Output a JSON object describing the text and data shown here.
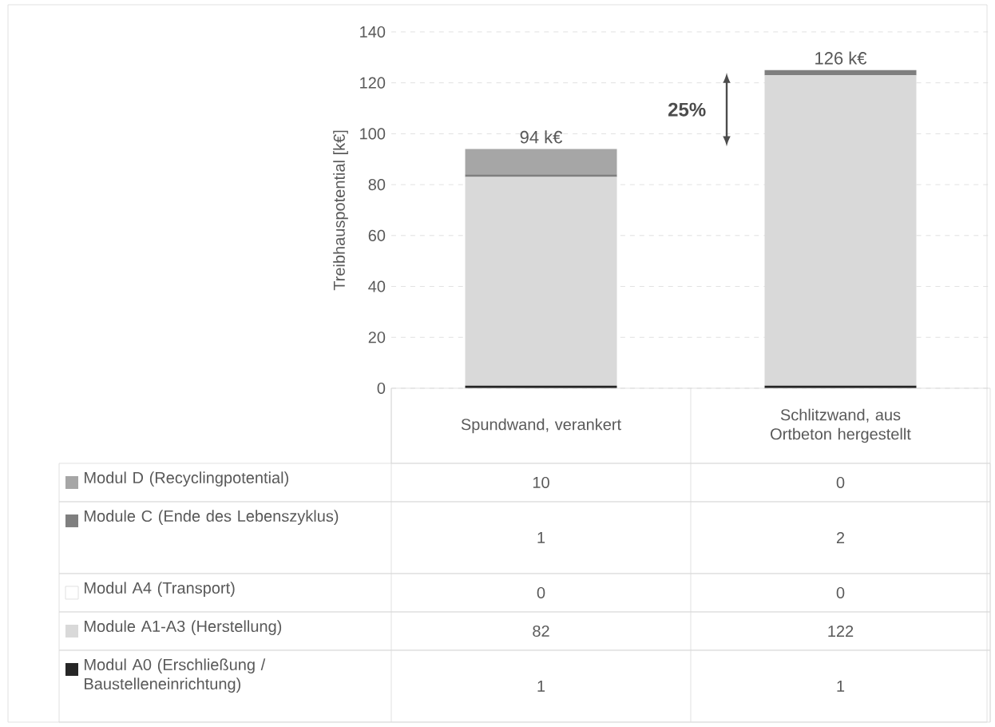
{
  "chart_data": {
    "type": "bar",
    "stacked": true,
    "ylabel": "Treibhauspotential [k€]",
    "categories": [
      "Spundwand, verankert",
      "Schlitzwand, aus Ortbeton hergestellt"
    ],
    "series": [
      {
        "name": "Modul A0 (Erschließung / Baustelleneinrichtung)",
        "color": "#262626",
        "values": [
          1,
          1
        ]
      },
      {
        "name": "Module A1-A3 (Herstellung)",
        "color": "#d9d9d9",
        "values": [
          82,
          122
        ]
      },
      {
        "name": "Modul A4 (Transport)",
        "color": "#ffffff",
        "values": [
          0,
          0
        ]
      },
      {
        "name": "Module C (Ende des Lebenszyklus)",
        "color": "#7f7f7f",
        "values": [
          1,
          2
        ]
      },
      {
        "name": "Modul D (Recyclingpotential)",
        "color": "#a6a6a6",
        "values": [
          10,
          0
        ]
      }
    ],
    "ylim": [
      0,
      140
    ],
    "yticks": [
      0,
      20,
      40,
      60,
      80,
      100,
      120,
      140
    ],
    "grid": "y",
    "legend": "bottom",
    "data_labels": true,
    "totals": [
      "94 k€",
      "126 k€"
    ],
    "annotations": [
      "25%"
    ]
  }
}
